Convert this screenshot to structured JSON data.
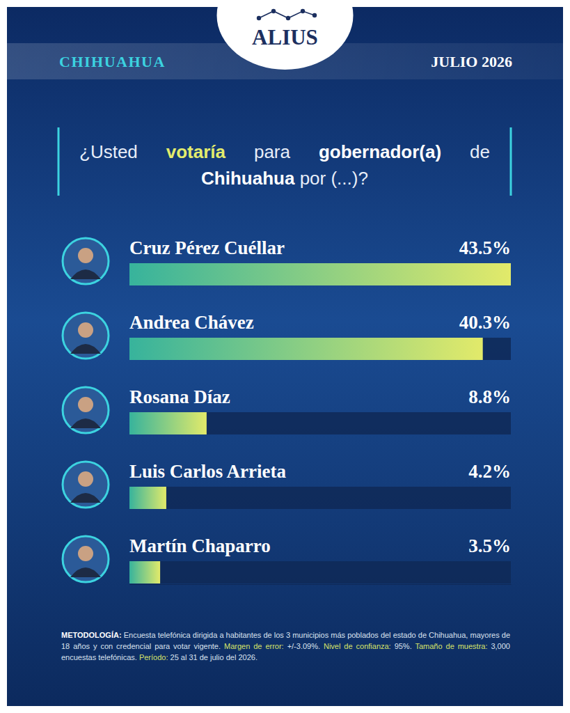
{
  "chart_data": {
    "type": "bar",
    "orientation": "horizontal",
    "brand": "ALIUS",
    "region": "CHIHUAHUA",
    "date": "JULIO 2026",
    "title_parts": [
      {
        "text": "¿Usted ",
        "style": "plain"
      },
      {
        "text": "votaría",
        "style": "highlight"
      },
      {
        "text": " para ",
        "style": "plain"
      },
      {
        "text": "gobernador(a)",
        "style": "bold"
      },
      {
        "text": " de ",
        "style": "plain"
      },
      {
        "text": "Chihuahua",
        "style": "bold"
      },
      {
        "text": " por (...)?",
        "style": "plain"
      }
    ],
    "categories": [
      "Cruz Pérez Cuéllar",
      "Andrea Chávez",
      "Rosana Díaz",
      "Luis Carlos Arrieta",
      "Martín Chaparro"
    ],
    "values": [
      43.5,
      40.3,
      8.8,
      4.2,
      3.5
    ],
    "value_labels": [
      "43.5%",
      "40.3%",
      "8.8%",
      "4.2%",
      "3.5%"
    ],
    "data_labels": true,
    "color": "#e2ea6a",
    "xlim": [
      0,
      43.5
    ],
    "xticks": [
      0,
      43.5
    ],
    "tick_labels": false,
    "grid": false,
    "footnote_parts": [
      {
        "text": "METODOLOGÍA:",
        "style": "bold"
      },
      {
        "text": " Encuesta telefónica dirigida a habitantes de los 3 municipios más poblados del estado de Chihuahua, mayores de 18 años y con credencial para votar vigente. ",
        "style": "plain"
      },
      {
        "text": "Margen de error:",
        "style": "highlight"
      },
      {
        "text": " +/-3.09%. ",
        "style": "plain"
      },
      {
        "text": "Nivel de confianza:",
        "style": "highlight"
      },
      {
        "text": " 95%. ",
        "style": "plain"
      },
      {
        "text": "Tamaño de muestra:",
        "style": "highlight"
      },
      {
        "text": " 3,000 encuestas telefónicas. ",
        "style": "plain"
      },
      {
        "text": "Período:",
        "style": "highlight"
      },
      {
        "text": " 25 al 31 de julio del 2026.",
        "style": "plain"
      }
    ]
  }
}
